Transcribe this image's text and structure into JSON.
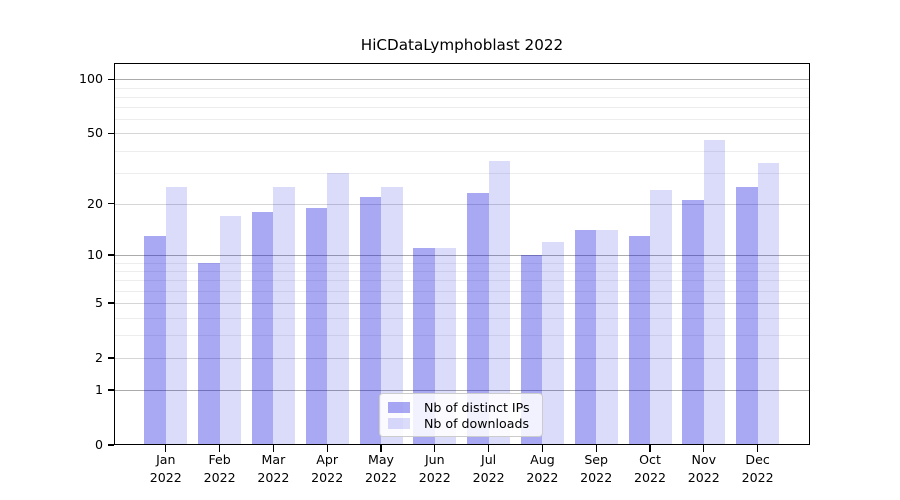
{
  "chart_data": {
    "type": "bar",
    "title": "HiCDataLymphoblast 2022",
    "categories": [
      {
        "month": "Jan",
        "year": "2022"
      },
      {
        "month": "Feb",
        "year": "2022"
      },
      {
        "month": "Mar",
        "year": "2022"
      },
      {
        "month": "Apr",
        "year": "2022"
      },
      {
        "month": "May",
        "year": "2022"
      },
      {
        "month": "Jun",
        "year": "2022"
      },
      {
        "month": "Jul",
        "year": "2022"
      },
      {
        "month": "Aug",
        "year": "2022"
      },
      {
        "month": "Sep",
        "year": "2022"
      },
      {
        "month": "Oct",
        "year": "2022"
      },
      {
        "month": "Nov",
        "year": "2022"
      },
      {
        "month": "Dec",
        "year": "2022"
      }
    ],
    "series": [
      {
        "name": "Nb of distinct IPs",
        "color": "#0000DC",
        "alpha": 0.34,
        "values": [
          13,
          9,
          18,
          19,
          22,
          11,
          23,
          10,
          14,
          13,
          21,
          25
        ]
      },
      {
        "name": "Nb of downloads",
        "color": "#0000DC",
        "alpha": 0.14,
        "values": [
          25,
          17,
          25,
          30,
          25,
          11,
          35,
          12,
          14,
          24,
          46,
          34
        ]
      }
    ],
    "yscale": "symlog",
    "ylim": [
      0,
      122
    ],
    "yticks": [
      0,
      1,
      2,
      5,
      10,
      20,
      50,
      100
    ],
    "minor_yticks": [
      3,
      4,
      6,
      7,
      8,
      9,
      30,
      40,
      60,
      70,
      80,
      90
    ],
    "xlabel": "",
    "ylabel": "",
    "grid": true,
    "legend_position": "lower center"
  },
  "colors": {
    "background": "#ffffff",
    "axis": "#000000",
    "grid_major": "#d6d6d6",
    "grid_decade": "#ababab",
    "grid_minor": "#ededed"
  }
}
